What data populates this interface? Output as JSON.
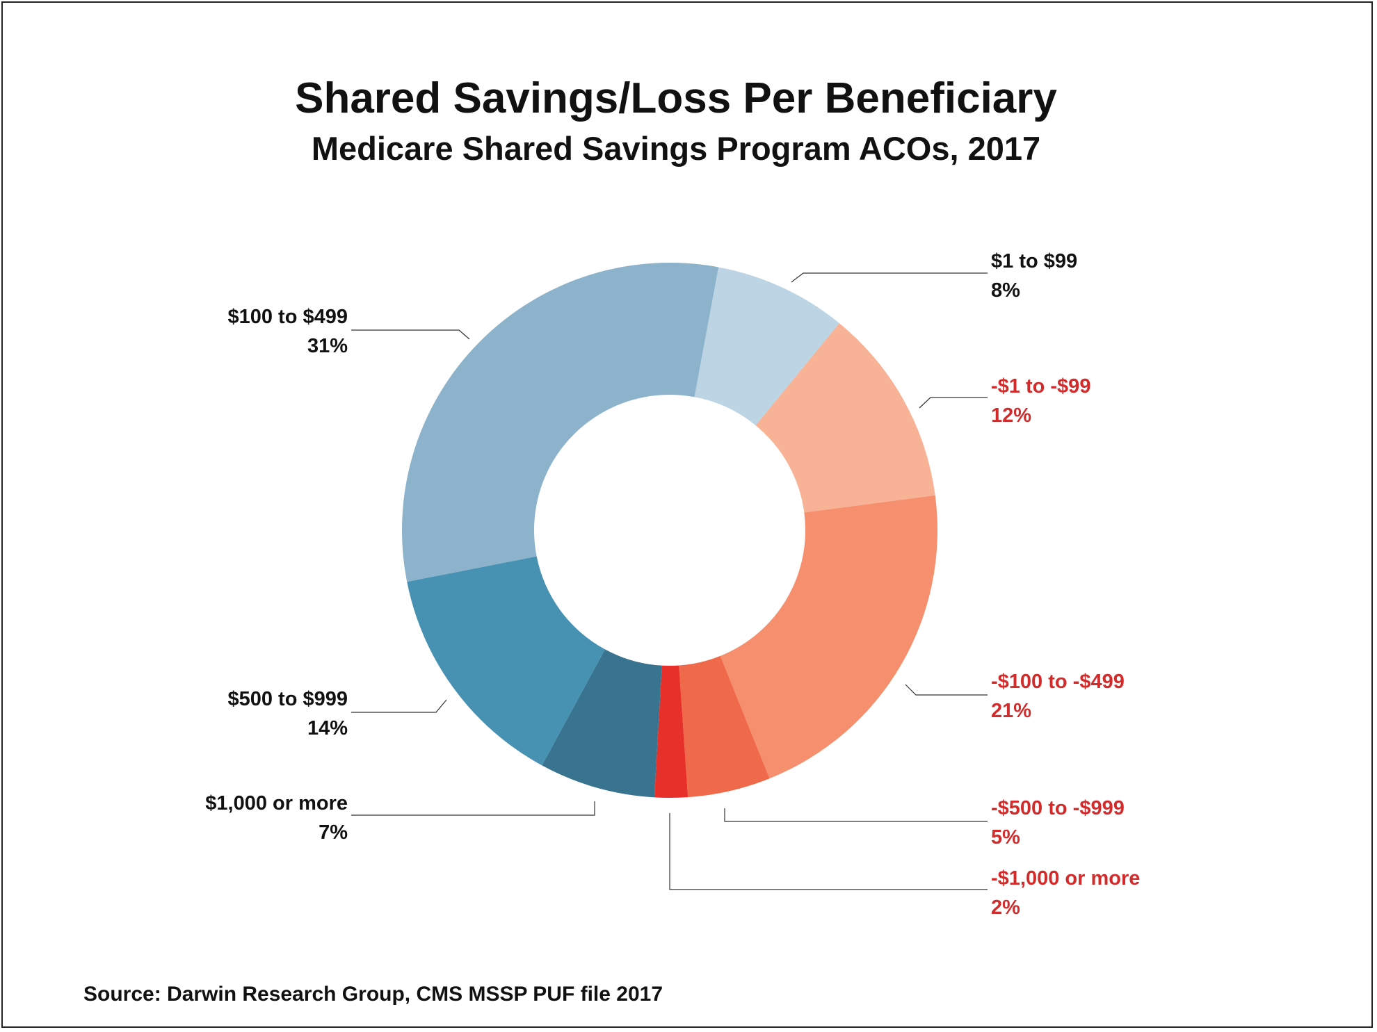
{
  "chart_data": {
    "type": "pie",
    "style": "donut",
    "title": "Shared Savings/Loss Per Beneficiary",
    "subtitle": "Medicare Shared Savings Program ACOs, 2017",
    "source": "Source: Darwin Research Group, CMS MSSP PUF file 2017",
    "slices": [
      {
        "label": "$1 to $99",
        "value": 8,
        "value_label": "8%",
        "color": "#bcd4e3",
        "text_color": "#111111"
      },
      {
        "label": "-$1 to -$99",
        "value": 12,
        "value_label": "12%",
        "color": "#f8b396",
        "text_color": "#d22b2b"
      },
      {
        "label": "-$100 to -$499",
        "value": 21,
        "value_label": "21%",
        "color": "#f58f6d",
        "text_color": "#d22b2b"
      },
      {
        "label": "-$500 to -$999",
        "value": 5,
        "value_label": "5%",
        "color": "#ef6a4a",
        "text_color": "#d22b2b"
      },
      {
        "label": "-$1,000 or more",
        "value": 2,
        "value_label": "2%",
        "color": "#e8302a",
        "text_color": "#d22b2b"
      },
      {
        "label": "$1,000 or more",
        "value": 7,
        "value_label": "7%",
        "color": "#38738f",
        "text_color": "#111111"
      },
      {
        "label": "$500 to $999",
        "value": 14,
        "value_label": "14%",
        "color": "#4791b2",
        "text_color": "#111111"
      },
      {
        "label": "$100 to $499",
        "value": 31,
        "value_label": "31%",
        "color": "#8cb3cb",
        "text_color": "#111111"
      }
    ]
  }
}
